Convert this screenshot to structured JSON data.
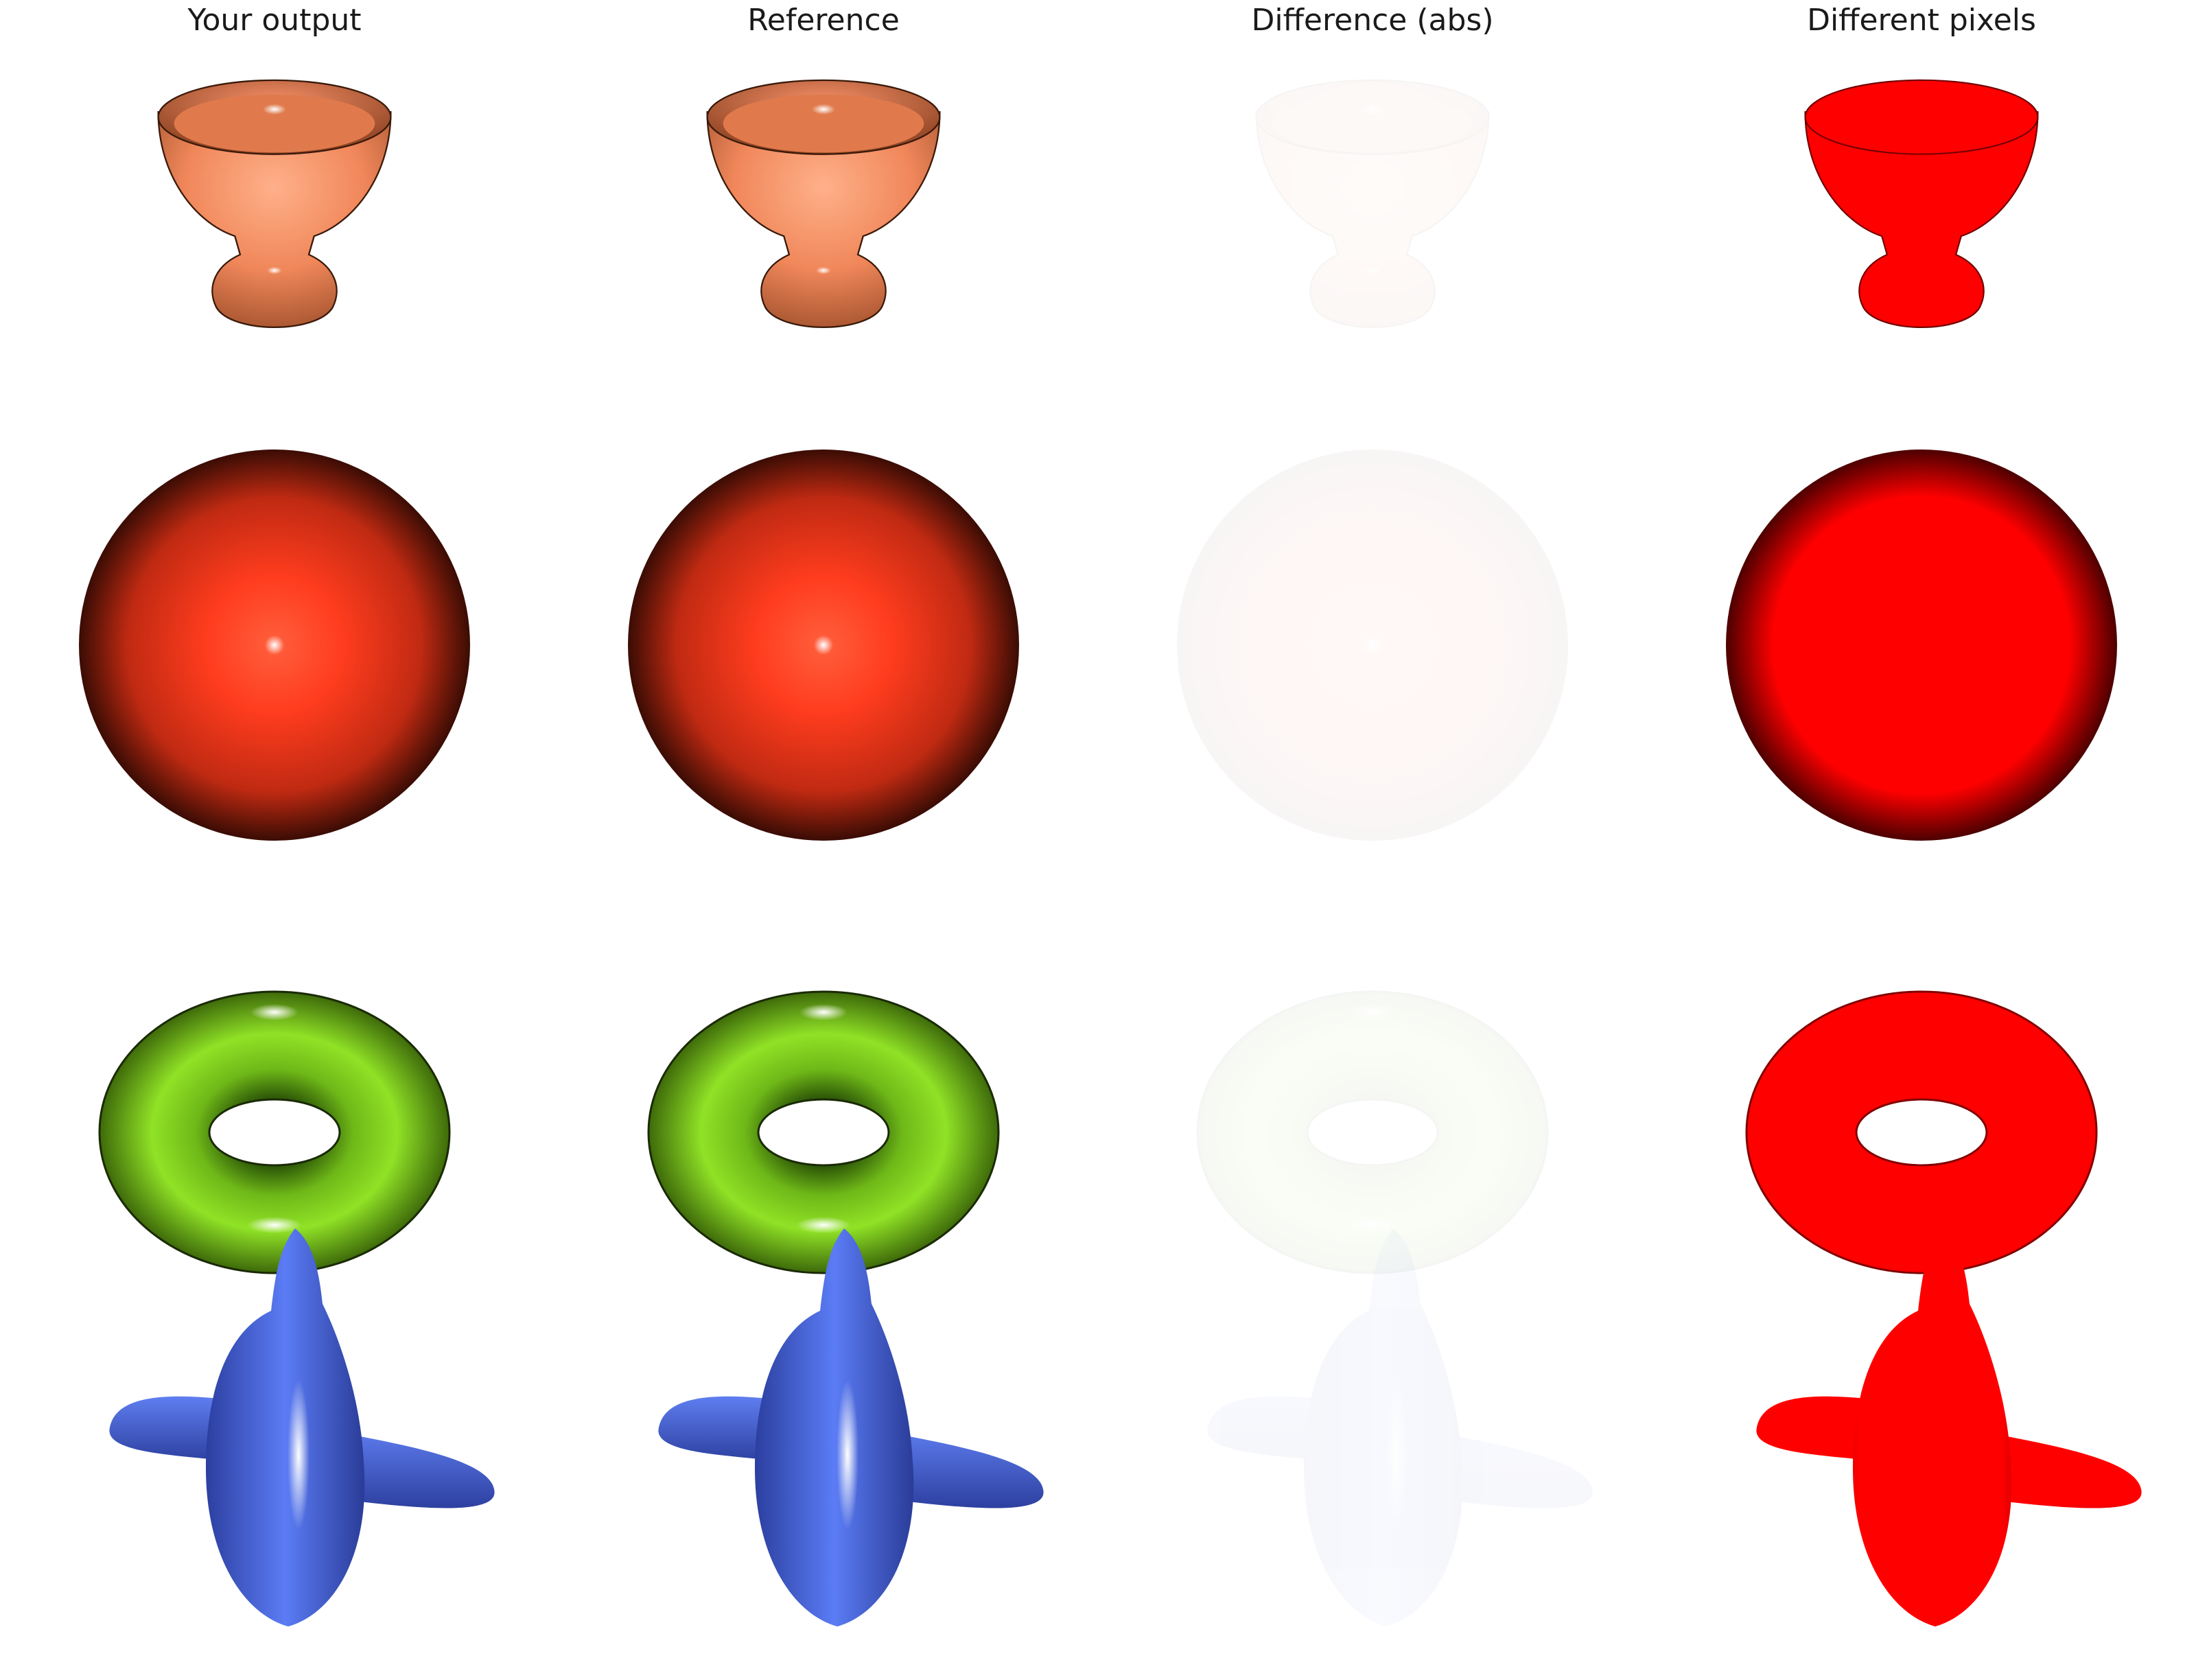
{
  "columns": [
    {
      "title": "Your output"
    },
    {
      "title": "Reference"
    },
    {
      "title": "Difference (abs)"
    },
    {
      "title": "Different pixels"
    }
  ],
  "rows": [
    {
      "object": "goblet",
      "color": "#f0875a"
    },
    {
      "object": "sphere",
      "color": "#ff3c1e"
    },
    {
      "object": "torus",
      "color": "#8ee020"
    },
    {
      "object": "airplane",
      "color": "#4a6bea"
    }
  ],
  "diff_color": "#ff0000"
}
